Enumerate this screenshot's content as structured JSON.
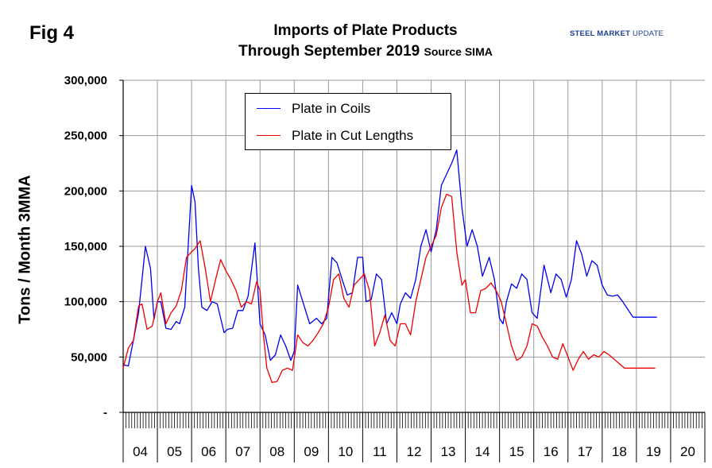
{
  "figure_label": "Fig 4",
  "title_line1": "Imports of Plate Products",
  "title_line2": "Through September 2019",
  "source_note": "Source SIMA",
  "logo": {
    "part1": "STEEL MARKET",
    "part2": "UPDATE"
  },
  "colors": {
    "coils": "#0000ee",
    "cut": "#ee0000",
    "grid": "#999999",
    "axis": "#000000"
  },
  "chart_data": {
    "type": "line",
    "title": "Imports of Plate Products Through September 2019",
    "xlabel": "",
    "ylabel": "Tons / Month 3MMA",
    "ylim": [
      0,
      300000
    ],
    "yticks": [
      0,
      50000,
      100000,
      150000,
      200000,
      250000,
      300000
    ],
    "ytick_labels": [
      "-",
      "50,000",
      "100,000",
      "150,000",
      "200,000",
      "250,000",
      "300,000"
    ],
    "categories": [
      "04",
      "05",
      "06",
      "07",
      "08",
      "09",
      "10",
      "11",
      "12",
      "13",
      "14",
      "15",
      "16",
      "17",
      "18",
      "19",
      "20"
    ],
    "x_unit": "year index from Jan 2004",
    "legend_position": "top-center",
    "series": [
      {
        "name": "Plate in Coils",
        "color": "#0000ee",
        "x": [
          0.0,
          0.15,
          0.3,
          0.45,
          0.55,
          0.65,
          0.8,
          0.9,
          1.0,
          1.1,
          1.25,
          1.4,
          1.55,
          1.65,
          1.8,
          1.9,
          2.0,
          2.1,
          2.2,
          2.3,
          2.45,
          2.6,
          2.75,
          2.85,
          2.95,
          3.05,
          3.2,
          3.35,
          3.5,
          3.65,
          3.85,
          4.0,
          4.15,
          4.3,
          4.45,
          4.6,
          4.75,
          4.9,
          5.0,
          5.1,
          5.25,
          5.45,
          5.65,
          5.8,
          5.95,
          6.1,
          6.25,
          6.4,
          6.55,
          6.7,
          6.85,
          7.0,
          7.1,
          7.25,
          7.4,
          7.55,
          7.7,
          7.85,
          8.0,
          8.1,
          8.25,
          8.4,
          8.55,
          8.7,
          8.85,
          9.0,
          9.15,
          9.3,
          9.45,
          9.6,
          9.75,
          9.9,
          10.05,
          10.2,
          10.35,
          10.5,
          10.7,
          10.85,
          11.0,
          11.1,
          11.2,
          11.35,
          11.5,
          11.65,
          11.8,
          11.95,
          12.1,
          12.3,
          12.5,
          12.65,
          12.8,
          12.95,
          13.1,
          13.25,
          13.4,
          13.55,
          13.7,
          13.85,
          14.0,
          14.15,
          14.3,
          14.45,
          14.6,
          14.75,
          14.9,
          15.05,
          15.2,
          15.35,
          15.5,
          15.6
        ],
        "values": [
          43000,
          42000,
          65000,
          90000,
          120000,
          150000,
          130000,
          84000,
          100000,
          100000,
          76000,
          75000,
          82000,
          80000,
          95000,
          150000,
          205000,
          190000,
          130000,
          95000,
          92000,
          100000,
          98000,
          85000,
          72000,
          75000,
          76000,
          92000,
          92000,
          105000,
          153000,
          80000,
          70000,
          47000,
          52000,
          70000,
          60000,
          47000,
          55000,
          115000,
          100000,
          80000,
          85000,
          80000,
          85000,
          140000,
          135000,
          120000,
          106000,
          108000,
          140000,
          140000,
          100000,
          102000,
          125000,
          120000,
          80000,
          90000,
          80000,
          98000,
          108000,
          103000,
          120000,
          150000,
          165000,
          145000,
          165000,
          205000,
          215000,
          225000,
          237000,
          185000,
          150000,
          165000,
          150000,
          123000,
          140000,
          120000,
          85000,
          80000,
          100000,
          116000,
          112000,
          125000,
          120000,
          90000,
          85000,
          133000,
          108000,
          125000,
          120000,
          104000,
          120000,
          155000,
          143000,
          123000,
          137000,
          133000,
          115000,
          106000,
          105000,
          106000,
          100000,
          93000,
          86000,
          86000,
          86000,
          86000,
          86000,
          86000
        ]
      },
      {
        "name": "Plate in Cut Lengths",
        "color": "#ee0000",
        "x": [
          0.0,
          0.15,
          0.3,
          0.45,
          0.55,
          0.7,
          0.85,
          1.0,
          1.1,
          1.25,
          1.4,
          1.55,
          1.7,
          1.85,
          2.0,
          2.1,
          2.25,
          2.4,
          2.55,
          2.7,
          2.85,
          3.0,
          3.15,
          3.3,
          3.45,
          3.6,
          3.75,
          3.9,
          4.0,
          4.1,
          4.2,
          4.35,
          4.5,
          4.65,
          4.8,
          4.95,
          5.1,
          5.25,
          5.4,
          5.55,
          5.7,
          5.85,
          6.0,
          6.15,
          6.3,
          6.45,
          6.6,
          6.75,
          6.9,
          7.05,
          7.2,
          7.35,
          7.5,
          7.65,
          7.8,
          7.95,
          8.1,
          8.25,
          8.4,
          8.55,
          8.7,
          8.85,
          9.0,
          9.15,
          9.3,
          9.45,
          9.6,
          9.75,
          9.9,
          10.0,
          10.15,
          10.3,
          10.45,
          10.6,
          10.75,
          10.9,
          11.05,
          11.2,
          11.35,
          11.5,
          11.65,
          11.8,
          11.95,
          12.1,
          12.25,
          12.4,
          12.55,
          12.7,
          12.85,
          13.0,
          13.15,
          13.3,
          13.45,
          13.6,
          13.75,
          13.9,
          14.05,
          14.2,
          14.35,
          14.5,
          14.65,
          14.8,
          14.95,
          15.1,
          15.25,
          15.4,
          15.55
        ],
        "values": [
          40000,
          58000,
          65000,
          96000,
          98000,
          75000,
          78000,
          100000,
          108000,
          80000,
          90000,
          96000,
          110000,
          140000,
          145000,
          148000,
          155000,
          130000,
          100000,
          120000,
          138000,
          128000,
          120000,
          110000,
          95000,
          100000,
          98000,
          118000,
          110000,
          70000,
          40000,
          27000,
          28000,
          38000,
          40000,
          38000,
          70000,
          63000,
          60000,
          65000,
          72000,
          80000,
          95000,
          120000,
          125000,
          103000,
          95000,
          115000,
          120000,
          125000,
          110000,
          60000,
          72000,
          88000,
          65000,
          60000,
          80000,
          80000,
          70000,
          100000,
          120000,
          140000,
          150000,
          160000,
          185000,
          197000,
          195000,
          145000,
          115000,
          120000,
          90000,
          90000,
          110000,
          112000,
          117000,
          110000,
          100000,
          80000,
          60000,
          47000,
          50000,
          60000,
          80000,
          78000,
          68000,
          60000,
          50000,
          48000,
          62000,
          50000,
          38000,
          48000,
          55000,
          48000,
          52000,
          50000,
          55000,
          52000,
          48000,
          44000,
          40000,
          40000,
          40000,
          40000,
          40000,
          40000,
          40000
        ]
      }
    ]
  }
}
